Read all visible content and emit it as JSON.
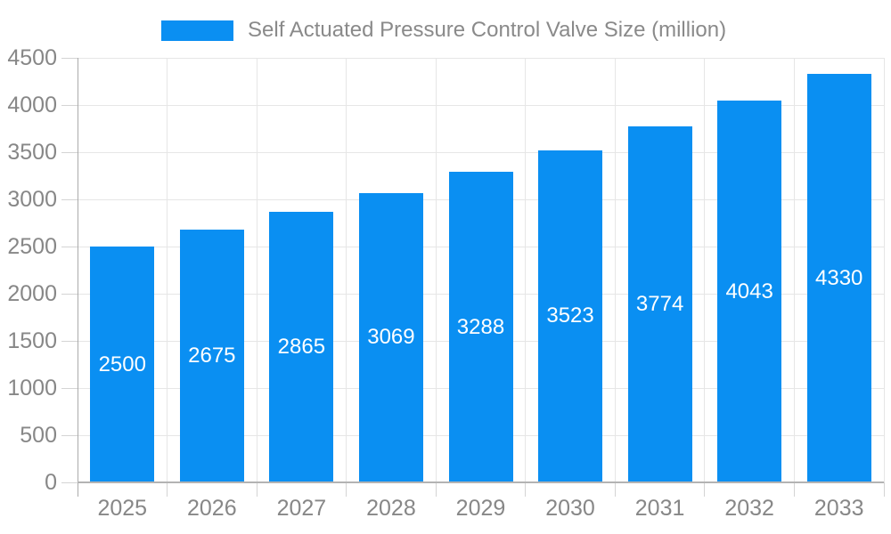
{
  "legend": {
    "label": "Self Actuated Pressure Control Valve Size (million)"
  },
  "chart_data": {
    "type": "bar",
    "title": "Self Actuated Pressure Control Valve Size (million)",
    "categories": [
      "2025",
      "2026",
      "2027",
      "2028",
      "2029",
      "2030",
      "2031",
      "2032",
      "2033"
    ],
    "values": [
      2500,
      2675,
      2865,
      3069,
      3288,
      3523,
      3774,
      4043,
      4330
    ],
    "xlabel": "",
    "ylabel": "",
    "ylim": [
      0,
      4500
    ],
    "yticks": [
      0,
      500,
      1000,
      1500,
      2000,
      2500,
      3000,
      3500,
      4000,
      4500
    ],
    "grid": true,
    "legend_position": "top",
    "bar_labels_inside": true
  },
  "colors": {
    "bar": "#0a8ff2",
    "bar_label": "#ffffff",
    "axis_text": "#878787",
    "legend_text": "#8a8a8a",
    "grid_line": "#e6e6e6",
    "axis_line": "#b3b3b3",
    "tick": "#d4d4d4",
    "background": "#ffffff"
  }
}
